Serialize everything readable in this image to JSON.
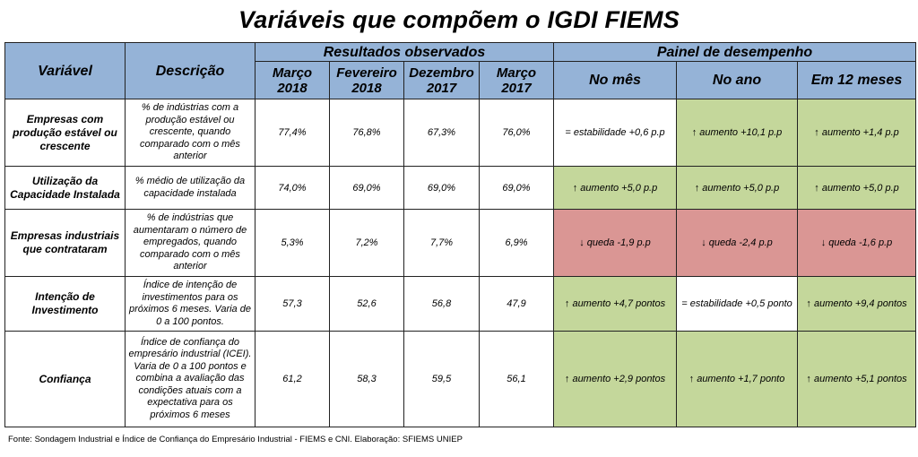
{
  "title": "Variáveis que compõem o IGDI FIEMS",
  "header": {
    "variavel": "Variável",
    "descricao": "Descrição",
    "resultados": "Resultados observados",
    "painel": "Painel de desempenho",
    "periods": [
      {
        "month": "Março",
        "year": "2018"
      },
      {
        "month": "Fevereiro",
        "year": "2018"
      },
      {
        "month": "Dezembro",
        "year": "2017"
      },
      {
        "month": "Março",
        "year": "2017"
      }
    ],
    "painel_cols": [
      "No mês",
      "No ano",
      "Em 12 meses"
    ]
  },
  "rows": [
    {
      "variavel": "Empresas com produção estável ou crescente",
      "descricao": "% de indústrias com a produção estável ou crescente, quando comparado com o mês anterior",
      "values": [
        "77,4%",
        "76,8%",
        "67,3%",
        "76,0%"
      ],
      "painel": [
        {
          "text": "= estabilidade +0,6 p.p",
          "status": "neutral",
          "color": "#ffffff"
        },
        {
          "text": "↑ aumento +10,1 p.p",
          "status": "up",
          "color": "#c4d79b"
        },
        {
          "text": "↑ aumento +1,4 p.p",
          "status": "up",
          "color": "#c4d79b"
        }
      ]
    },
    {
      "variavel": "Utilização da Capacidade Instalada",
      "descricao": "% médio de utilização da capacidade instalada",
      "values": [
        "74,0%",
        "69,0%",
        "69,0%",
        "69,0%"
      ],
      "painel": [
        {
          "text": "↑ aumento +5,0 p.p",
          "status": "up",
          "color": "#c4d79b"
        },
        {
          "text": "↑ aumento +5,0 p.p",
          "status": "up",
          "color": "#c4d79b"
        },
        {
          "text": "↑ aumento +5,0 p.p",
          "status": "up",
          "color": "#c4d79b"
        }
      ]
    },
    {
      "variavel": "Empresas industriais que contrataram",
      "descricao": "% de indústrias que aumentaram o número de empregados, quando comparado com o mês anterior",
      "values": [
        "5,3%",
        "7,2%",
        "7,7%",
        "6,9%"
      ],
      "painel": [
        {
          "text": "↓ queda  -1,9 p.p",
          "status": "down",
          "color": "#da9694"
        },
        {
          "text": "↓ queda  -2,4 p.p",
          "status": "down",
          "color": "#da9694"
        },
        {
          "text": "↓ queda  -1,6 p.p",
          "status": "down",
          "color": "#da9694"
        }
      ]
    },
    {
      "variavel": "Intenção de Investimento",
      "descricao": "Índice de intenção de investimentos para os próximos 6 meses. Varia de 0 a 100 pontos.",
      "values": [
        "57,3",
        "52,6",
        "56,8",
        "47,9"
      ],
      "painel": [
        {
          "text": "↑ aumento +4,7 pontos",
          "status": "up",
          "color": "#c4d79b"
        },
        {
          "text": "= estabilidade +0,5 ponto",
          "status": "neutral",
          "color": "#ffffff"
        },
        {
          "text": "↑ aumento +9,4 pontos",
          "status": "up",
          "color": "#c4d79b"
        }
      ]
    },
    {
      "variavel": "Confiança",
      "descricao": "Índice de confiança do empresário industrial (ICEI). Varia de 0 a 100 pontos e combina a avaliação das condições atuais com a expectativa para os próximos 6 meses",
      "values": [
        "61,2",
        "58,3",
        "59,5",
        "56,1"
      ],
      "painel": [
        {
          "text": "↑ aumento +2,9 pontos",
          "status": "up",
          "color": "#c4d79b"
        },
        {
          "text": "↑ aumento +1,7 ponto",
          "status": "up",
          "color": "#c4d79b"
        },
        {
          "text": "↑ aumento +5,1 pontos",
          "status": "up",
          "color": "#c4d79b"
        }
      ]
    }
  ],
  "footer": "Fonte: Sondagem Industrial e Índice de Confiança do Empresário Industrial - FIEMS e CNI. Elaboração: SFIEMS UNIEP",
  "colors": {
    "header_bg": "#95b3d7",
    "up": "#c4d79b",
    "down": "#da9694",
    "neutral": "#ffffff"
  }
}
